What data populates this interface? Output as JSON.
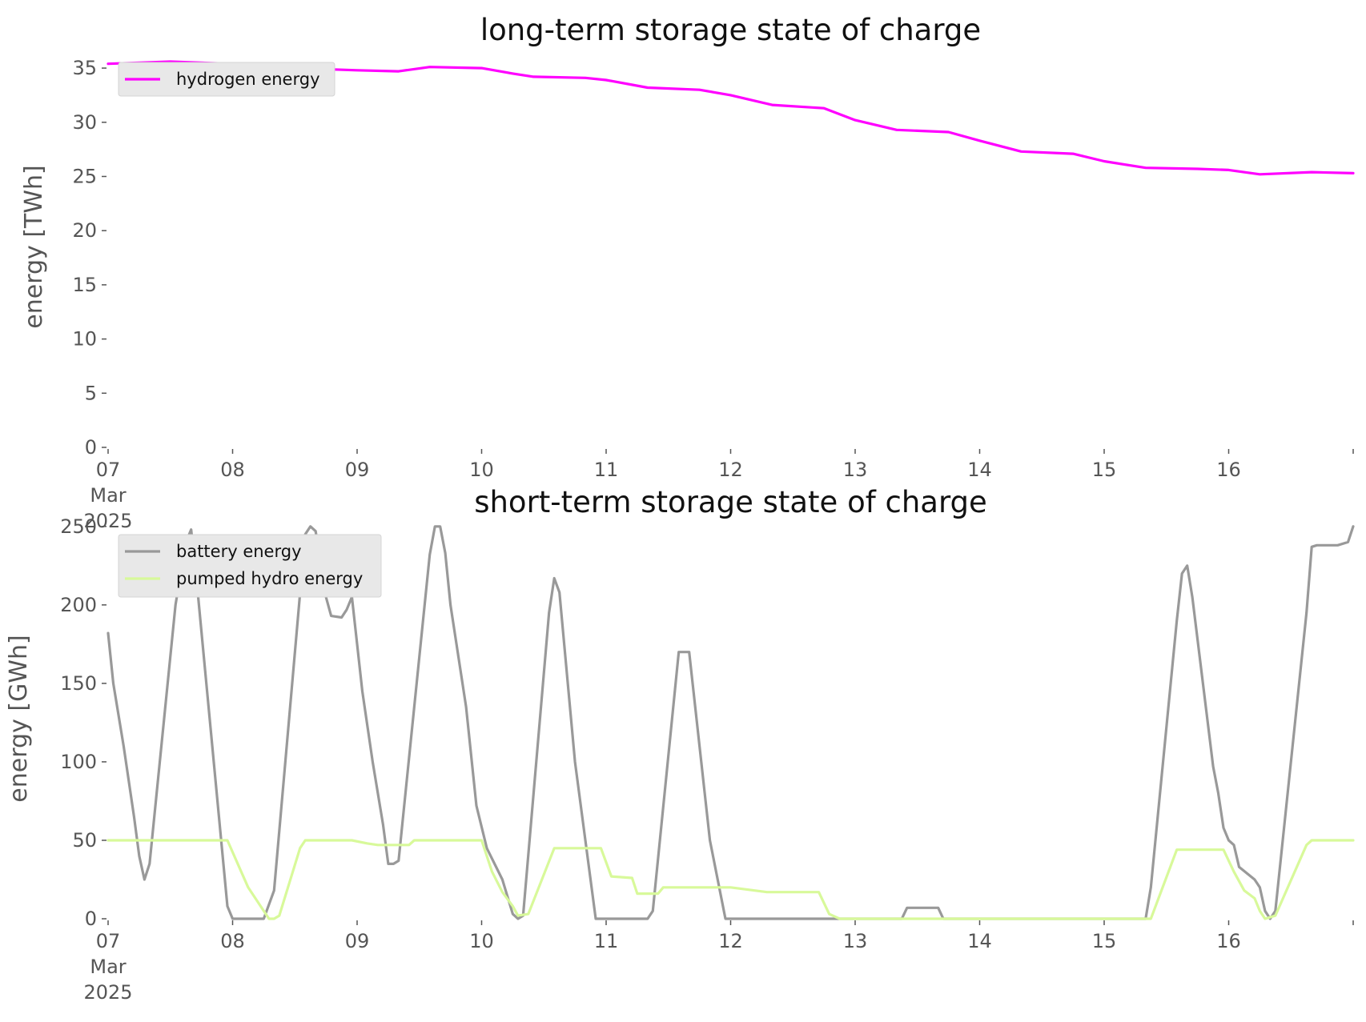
{
  "chart_data": [
    {
      "type": "line",
      "title": "long-term storage state of charge",
      "xlabel": "",
      "ylabel": "energy [TWh]",
      "ylim": [
        0,
        37
      ],
      "xlim": [
        "2025-03-07 00:00",
        "2025-03-17 00:00"
      ],
      "yticks": [
        0,
        5,
        10,
        15,
        20,
        25,
        30,
        35
      ],
      "xticks": [
        {
          "value": "2025-03-07",
          "label": "07\nMar\n2025"
        },
        {
          "value": "2025-03-08",
          "label": "08"
        },
        {
          "value": "2025-03-09",
          "label": "09"
        },
        {
          "value": "2025-03-10",
          "label": "10"
        },
        {
          "value": "2025-03-11",
          "label": "11"
        },
        {
          "value": "2025-03-12",
          "label": "12"
        },
        {
          "value": "2025-03-13",
          "label": "13"
        },
        {
          "value": "2025-03-14",
          "label": "14"
        },
        {
          "value": "2025-03-15",
          "label": "15"
        },
        {
          "value": "2025-03-16",
          "label": "16"
        }
      ],
      "grid": false,
      "legend_position": "top-left",
      "series": [
        {
          "name": "hydrogen energy",
          "color": "#ff00ff",
          "points": [
            [
              "2025-03-07 00:00",
              35.4
            ],
            [
              "2025-03-07 12:00",
              35.6
            ],
            [
              "2025-03-08 00:00",
              35.4
            ],
            [
              "2025-03-08 12:00",
              35.0
            ],
            [
              "2025-03-09 00:00",
              34.8
            ],
            [
              "2025-03-09 08:00",
              34.7
            ],
            [
              "2025-03-09 14:00",
              35.1
            ],
            [
              "2025-03-10 00:00",
              35.0
            ],
            [
              "2025-03-10 06:00",
              34.5
            ],
            [
              "2025-03-10 10:00",
              34.2
            ],
            [
              "2025-03-10 20:00",
              34.1
            ],
            [
              "2025-03-11 00:00",
              33.9
            ],
            [
              "2025-03-11 08:00",
              33.2
            ],
            [
              "2025-03-11 18:00",
              33.0
            ],
            [
              "2025-03-12 00:00",
              32.5
            ],
            [
              "2025-03-12 08:00",
              31.6
            ],
            [
              "2025-03-12 18:00",
              31.3
            ],
            [
              "2025-03-13 00:00",
              30.2
            ],
            [
              "2025-03-13 08:00",
              29.3
            ],
            [
              "2025-03-13 18:00",
              29.1
            ],
            [
              "2025-03-14 00:00",
              28.3
            ],
            [
              "2025-03-14 08:00",
              27.3
            ],
            [
              "2025-03-14 18:00",
              27.1
            ],
            [
              "2025-03-15 00:00",
              26.4
            ],
            [
              "2025-03-15 08:00",
              25.8
            ],
            [
              "2025-03-15 18:00",
              25.7
            ],
            [
              "2025-03-16 00:00",
              25.6
            ],
            [
              "2025-03-16 06:00",
              25.2
            ],
            [
              "2025-03-16 16:00",
              25.4
            ],
            [
              "2025-03-17 00:00",
              25.3
            ]
          ]
        }
      ]
    },
    {
      "type": "line",
      "title": "short-term storage state of charge",
      "xlabel": "",
      "ylabel": "energy [GWh]",
      "ylim": [
        0,
        255
      ],
      "xlim": [
        "2025-03-07 00:00",
        "2025-03-17 00:00"
      ],
      "yticks": [
        0,
        50,
        100,
        150,
        200,
        250
      ],
      "xticks": [
        {
          "value": "2025-03-07",
          "label": "07\nMar\n2025"
        },
        {
          "value": "2025-03-08",
          "label": "08"
        },
        {
          "value": "2025-03-09",
          "label": "09"
        },
        {
          "value": "2025-03-10",
          "label": "10"
        },
        {
          "value": "2025-03-11",
          "label": "11"
        },
        {
          "value": "2025-03-12",
          "label": "12"
        },
        {
          "value": "2025-03-13",
          "label": "13"
        },
        {
          "value": "2025-03-14",
          "label": "14"
        },
        {
          "value": "2025-03-15",
          "label": "15"
        },
        {
          "value": "2025-03-16",
          "label": "16"
        }
      ],
      "grid": false,
      "legend_position": "top-left",
      "series": [
        {
          "name": "battery energy",
          "color": "#999999",
          "points": [
            [
              "2025-03-07 00:00",
              182
            ],
            [
              "2025-03-07 01:00",
              150
            ],
            [
              "2025-03-07 03:00",
              110
            ],
            [
              "2025-03-07 05:00",
              65
            ],
            [
              "2025-03-07 06:00",
              40
            ],
            [
              "2025-03-07 07:00",
              25
            ],
            [
              "2025-03-07 08:00",
              35
            ],
            [
              "2025-03-07 13:00",
              200
            ],
            [
              "2025-03-07 15:00",
              240
            ],
            [
              "2025-03-07 16:00",
              248
            ],
            [
              "2025-03-07 17:00",
              218
            ],
            [
              "2025-03-07 23:00",
              8
            ],
            [
              "2025-03-08 00:00",
              0
            ],
            [
              "2025-03-08 06:00",
              0
            ],
            [
              "2025-03-08 08:00",
              18
            ],
            [
              "2025-03-08 14:00",
              245
            ],
            [
              "2025-03-08 15:00",
              250
            ],
            [
              "2025-03-08 16:00",
              247
            ],
            [
              "2025-03-08 18:00",
              205
            ],
            [
              "2025-03-08 19:00",
              193
            ],
            [
              "2025-03-08 21:00",
              192
            ],
            [
              "2025-03-08 22:00",
              197
            ],
            [
              "2025-03-08 23:00",
              205
            ],
            [
              "2025-03-09 01:00",
              145
            ],
            [
              "2025-03-09 03:00",
              100
            ],
            [
              "2025-03-09 05:00",
              60
            ],
            [
              "2025-03-09 06:00",
              35
            ],
            [
              "2025-03-09 07:00",
              35
            ],
            [
              "2025-03-09 08:00",
              37
            ],
            [
              "2025-03-09 14:00",
              232
            ],
            [
              "2025-03-09 15:00",
              250
            ],
            [
              "2025-03-09 16:00",
              250
            ],
            [
              "2025-03-09 17:00",
              233
            ],
            [
              "2025-03-09 18:00",
              200
            ],
            [
              "2025-03-09 21:00",
              135
            ],
            [
              "2025-03-09 23:00",
              72
            ],
            [
              "2025-03-10 01:00",
              45
            ],
            [
              "2025-03-10 04:00",
              25
            ],
            [
              "2025-03-10 06:00",
              3
            ],
            [
              "2025-03-10 07:00",
              0
            ],
            [
              "2025-03-10 08:00",
              2
            ],
            [
              "2025-03-10 13:00",
              195
            ],
            [
              "2025-03-10 14:00",
              217
            ],
            [
              "2025-03-10 15:00",
              208
            ],
            [
              "2025-03-10 18:00",
              100
            ],
            [
              "2025-03-10 22:00",
              0
            ],
            [
              "2025-03-11 06:00",
              0
            ],
            [
              "2025-03-11 08:00",
              0
            ],
            [
              "2025-03-11 09:00",
              5
            ],
            [
              "2025-03-11 14:00",
              170
            ],
            [
              "2025-03-11 16:00",
              170
            ],
            [
              "2025-03-11 20:00",
              50
            ],
            [
              "2025-03-11 23:00",
              0
            ],
            [
              "2025-03-13 00:00",
              0
            ],
            [
              "2025-03-13 09:00",
              0
            ],
            [
              "2025-03-13 10:00",
              7
            ],
            [
              "2025-03-13 16:00",
              7
            ],
            [
              "2025-03-13 17:00",
              0
            ],
            [
              "2025-03-15 00:00",
              0
            ],
            [
              "2025-03-15 08:00",
              0
            ],
            [
              "2025-03-15 09:00",
              20
            ],
            [
              "2025-03-15 14:00",
              190
            ],
            [
              "2025-03-15 15:00",
              220
            ],
            [
              "2025-03-15 16:00",
              225
            ],
            [
              "2025-03-15 17:00",
              205
            ],
            [
              "2025-03-15 21:00",
              97
            ],
            [
              "2025-03-15 22:00",
              80
            ],
            [
              "2025-03-15 23:00",
              58
            ],
            [
              "2025-03-16 00:00",
              50
            ],
            [
              "2025-03-16 01:00",
              47
            ],
            [
              "2025-03-16 02:00",
              33
            ],
            [
              "2025-03-16 05:00",
              25
            ],
            [
              "2025-03-16 06:00",
              20
            ],
            [
              "2025-03-16 07:00",
              5
            ],
            [
              "2025-03-16 08:00",
              0
            ],
            [
              "2025-03-16 09:00",
              5
            ],
            [
              "2025-03-16 15:00",
              195
            ],
            [
              "2025-03-16 16:00",
              237
            ],
            [
              "2025-03-16 17:00",
              238
            ],
            [
              "2025-03-16 21:00",
              238
            ],
            [
              "2025-03-16 23:00",
              240
            ],
            [
              "2025-03-17 00:00",
              250
            ]
          ]
        },
        {
          "name": "pumped hydro energy",
          "color": "#d8f99a",
          "points": [
            [
              "2025-03-07 00:00",
              50
            ],
            [
              "2025-03-07 23:00",
              50
            ],
            [
              "2025-03-08 03:00",
              20
            ],
            [
              "2025-03-08 05:00",
              10
            ],
            [
              "2025-03-08 07:00",
              0
            ],
            [
              "2025-03-08 08:00",
              0
            ],
            [
              "2025-03-08 09:00",
              2
            ],
            [
              "2025-03-08 13:00",
              45
            ],
            [
              "2025-03-08 14:00",
              50
            ],
            [
              "2025-03-08 23:00",
              50
            ],
            [
              "2025-03-09 02:00",
              48
            ],
            [
              "2025-03-09 04:00",
              47
            ],
            [
              "2025-03-09 10:00",
              47
            ],
            [
              "2025-03-09 11:00",
              50
            ],
            [
              "2025-03-10 00:00",
              50
            ],
            [
              "2025-03-10 02:00",
              30
            ],
            [
              "2025-03-10 04:00",
              17
            ],
            [
              "2025-03-10 06:00",
              8
            ],
            [
              "2025-03-10 07:00",
              2
            ],
            [
              "2025-03-10 09:00",
              3
            ],
            [
              "2025-03-10 14:00",
              45
            ],
            [
              "2025-03-10 23:00",
              45
            ],
            [
              "2025-03-11 01:00",
              27
            ],
            [
              "2025-03-11 05:00",
              26
            ],
            [
              "2025-03-11 06:00",
              16
            ],
            [
              "2025-03-11 10:00",
              16
            ],
            [
              "2025-03-11 11:00",
              20
            ],
            [
              "2025-03-12 00:00",
              20
            ],
            [
              "2025-03-12 07:00",
              17
            ],
            [
              "2025-03-12 17:00",
              17
            ],
            [
              "2025-03-12 19:00",
              3
            ],
            [
              "2025-03-12 21:00",
              0
            ],
            [
              "2025-03-15 09:00",
              0
            ],
            [
              "2025-03-15 14:00",
              44
            ],
            [
              "2025-03-15 23:00",
              44
            ],
            [
              "2025-03-16 01:00",
              30
            ],
            [
              "2025-03-16 03:00",
              18
            ],
            [
              "2025-03-16 05:00",
              13
            ],
            [
              "2025-03-16 06:00",
              5
            ],
            [
              "2025-03-16 07:00",
              0
            ],
            [
              "2025-03-16 09:00",
              2
            ],
            [
              "2025-03-16 15:00",
              47
            ],
            [
              "2025-03-16 16:00",
              50
            ],
            [
              "2025-03-17 00:00",
              50
            ]
          ]
        }
      ]
    }
  ]
}
